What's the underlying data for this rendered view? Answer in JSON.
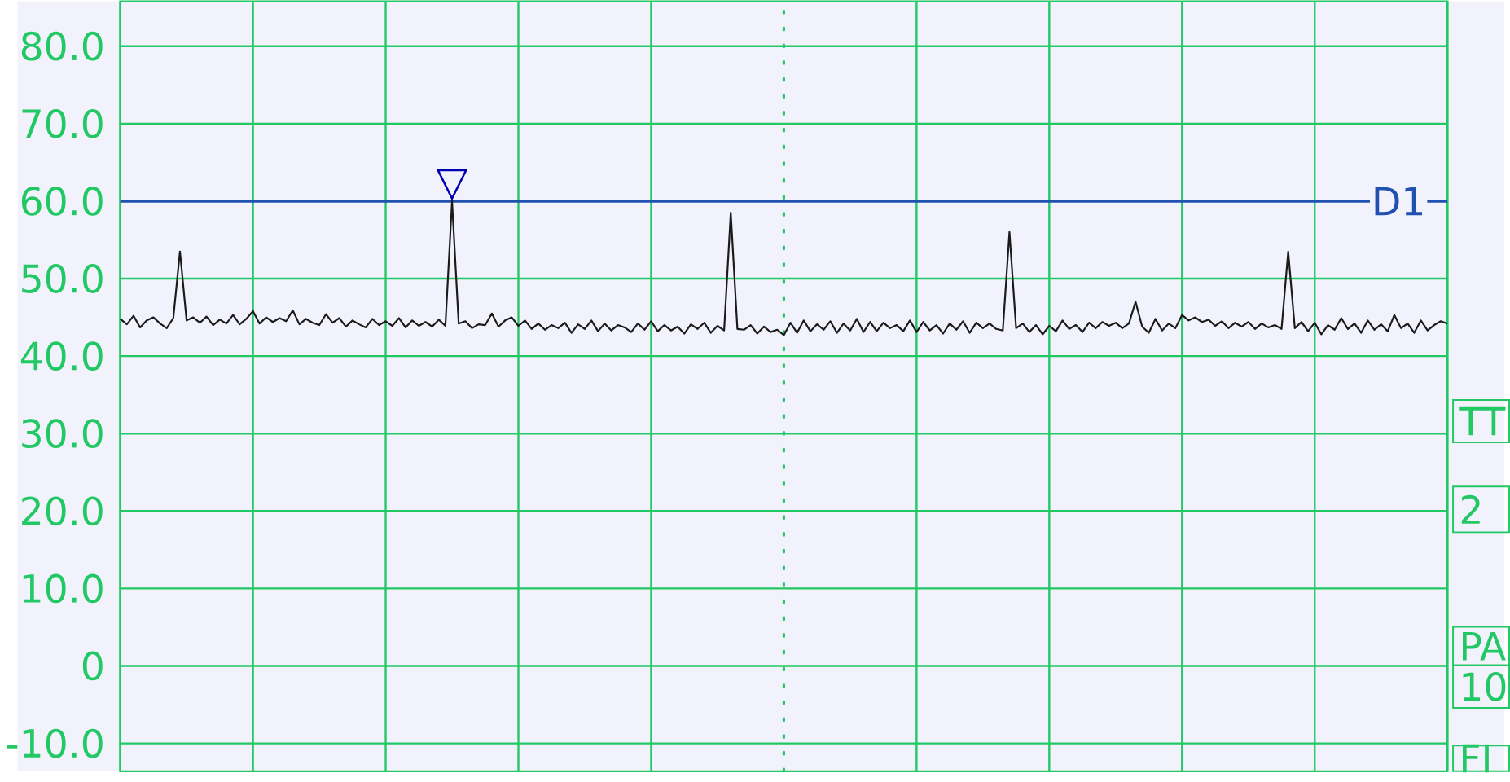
{
  "chart_data": {
    "type": "line",
    "categories": [
      null,
      null,
      null,
      null,
      null,
      null,
      null,
      null,
      null,
      null,
      null,
      null,
      null,
      null,
      null,
      null,
      null,
      null,
      null,
      null,
      null,
      null,
      null,
      null,
      null,
      null,
      null,
      null,
      null,
      null,
      null,
      null,
      null,
      null,
      null,
      null,
      null,
      null,
      null,
      null,
      null,
      null,
      null,
      null,
      null,
      null,
      null,
      null,
      null,
      null,
      null,
      null,
      null,
      null,
      null,
      null,
      null,
      null,
      null,
      null,
      null,
      null,
      null,
      null,
      null,
      null,
      null,
      null,
      null,
      null,
      null,
      null,
      null,
      null,
      null,
      null,
      null,
      null,
      null,
      null,
      null,
      null,
      null,
      null,
      null,
      null,
      null,
      null,
      null,
      null,
      null,
      null,
      null,
      null,
      null,
      null,
      null,
      null,
      null,
      null,
      null,
      null,
      null,
      null,
      null,
      null,
      null,
      null,
      null,
      null,
      null,
      null,
      null,
      null,
      null,
      null,
      null,
      null,
      null,
      null,
      null,
      null,
      null,
      null,
      null,
      null,
      null,
      null,
      null,
      null,
      null,
      null,
      null,
      null,
      null,
      null,
      null,
      null,
      null,
      null,
      null,
      null,
      null,
      null,
      null,
      null,
      null,
      null,
      null,
      null,
      null,
      null,
      null,
      null,
      null,
      null,
      null,
      null,
      null,
      null,
      null,
      null,
      null,
      null,
      null,
      null,
      null,
      null,
      null,
      null,
      null,
      null,
      null,
      null,
      null,
      null,
      null,
      null,
      null,
      null,
      null,
      null,
      null,
      null,
      null,
      null,
      null,
      null,
      null,
      null,
      null,
      null,
      null,
      null,
      null,
      null,
      null,
      null,
      null,
      null,
      null
    ],
    "ylim": [
      -13.6,
      85.8
    ],
    "yticks": [
      {
        "value": -10,
        "label": "-10.0"
      },
      {
        "value": 0,
        "label": "0"
      },
      {
        "value": 10,
        "label": "10.0"
      },
      {
        "value": 20,
        "label": "20.0"
      },
      {
        "value": 30,
        "label": "30.0"
      },
      {
        "value": 40,
        "label": "40.0"
      },
      {
        "value": 50,
        "label": "50.0"
      },
      {
        "value": 60,
        "label": "60.0"
      },
      {
        "value": 70,
        "label": "70.0"
      },
      {
        "value": 80,
        "label": "80.0"
      }
    ],
    "tick_labels": "y",
    "grid": true,
    "series": [
      {
        "color": "#1a1a1a",
        "values": [
          44.8,
          44.1,
          45.2,
          43.7,
          44.6,
          45.0,
          44.2,
          43.6,
          44.9,
          53.5,
          44.6,
          45.0,
          44.3,
          45.1,
          44.0,
          44.7,
          44.2,
          45.3,
          44.1,
          44.8,
          45.8,
          44.2,
          45.0,
          44.4,
          44.9,
          44.5,
          45.9,
          44.1,
          44.8,
          44.3,
          44.0,
          45.4,
          44.3,
          44.9,
          43.8,
          44.6,
          44.1,
          43.7,
          44.8,
          44.0,
          44.5,
          43.9,
          44.9,
          43.7,
          44.6,
          43.9,
          44.4,
          43.8,
          44.7,
          43.9,
          60.0,
          44.2,
          44.5,
          43.6,
          44.1,
          44.0,
          45.5,
          43.8,
          44.6,
          45.0,
          43.9,
          44.6,
          43.5,
          44.2,
          43.4,
          44.0,
          43.6,
          44.3,
          43.0,
          44.1,
          43.5,
          44.6,
          43.2,
          44.2,
          43.3,
          44.0,
          43.7,
          43.1,
          44.2,
          43.4,
          44.5,
          43.2,
          44.0,
          43.3,
          43.8,
          42.9,
          44.1,
          43.5,
          44.3,
          43.0,
          43.9,
          43.3,
          58.5,
          43.5,
          43.4,
          44.0,
          42.9,
          43.8,
          43.1,
          43.4,
          42.7,
          44.3,
          43.0,
          44.6,
          43.2,
          44.1,
          43.4,
          44.5,
          43.0,
          44.2,
          43.3,
          44.8,
          43.1,
          44.4,
          43.2,
          44.3,
          43.6,
          44.0,
          43.2,
          44.6,
          43.1,
          44.4,
          43.3,
          44.0,
          42.9,
          44.2,
          43.4,
          44.5,
          43.0,
          44.3,
          43.6,
          44.2,
          43.5,
          43.3,
          56.0,
          43.6,
          44.2,
          43.1,
          44.0,
          42.8,
          43.9,
          43.2,
          44.6,
          43.5,
          44.0,
          43.1,
          44.3,
          43.6,
          44.4,
          43.9,
          44.3,
          43.6,
          44.2,
          47.0,
          43.8,
          43.0,
          44.8,
          43.3,
          44.2,
          43.6,
          45.3,
          44.6,
          45.0,
          44.4,
          44.7,
          43.9,
          44.5,
          43.6,
          44.3,
          43.8,
          44.4,
          43.5,
          44.2,
          43.7,
          44.0,
          43.5,
          53.5,
          43.6,
          44.4,
          43.2,
          44.3,
          42.8,
          44.0,
          43.4,
          44.9,
          43.5,
          44.2,
          43.0,
          44.6,
          43.4,
          44.1,
          43.2,
          45.3,
          43.6,
          44.2,
          43.0,
          44.6,
          43.3,
          44.0,
          44.5,
          44.2
        ]
      }
    ],
    "ref_lines": [
      {
        "axis": "y",
        "value": 60,
        "label": "D1",
        "color": "#2050b0"
      }
    ],
    "annotations": [
      {
        "text": "▽",
        "y": 60
      },
      "TT",
      "2",
      "PA",
      "10",
      "FI"
    ]
  }
}
